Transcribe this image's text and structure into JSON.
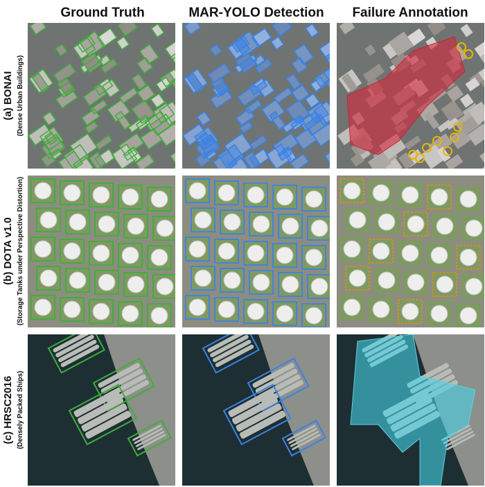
{
  "columns": [
    "Ground Truth",
    "MAR-YOLO Detection",
    "Failure Annotation"
  ],
  "rows": [
    {
      "label": "(a) BONAI",
      "sublabel": "(Dense Urban Buildings)"
    },
    {
      "label": "(b) DOTA v1.0",
      "sublabel": "(Storage Tanks under Perspective Distortion)"
    },
    {
      "label": "(c) HRSC2016",
      "sublabel": "(Densely Packed Ships)"
    }
  ]
}
